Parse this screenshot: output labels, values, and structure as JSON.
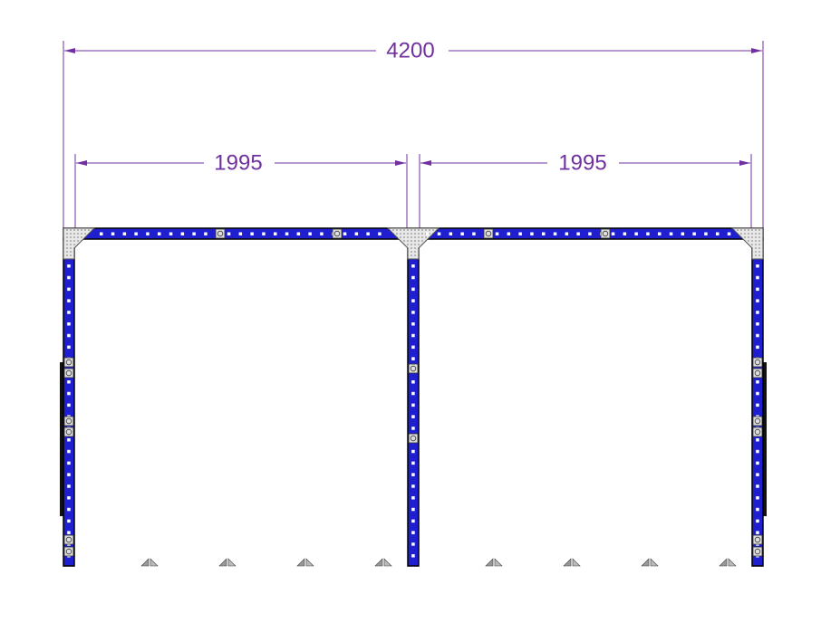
{
  "dimensions": {
    "overall": "4200",
    "left_bay": "1995",
    "right_bay": "1995"
  }
}
